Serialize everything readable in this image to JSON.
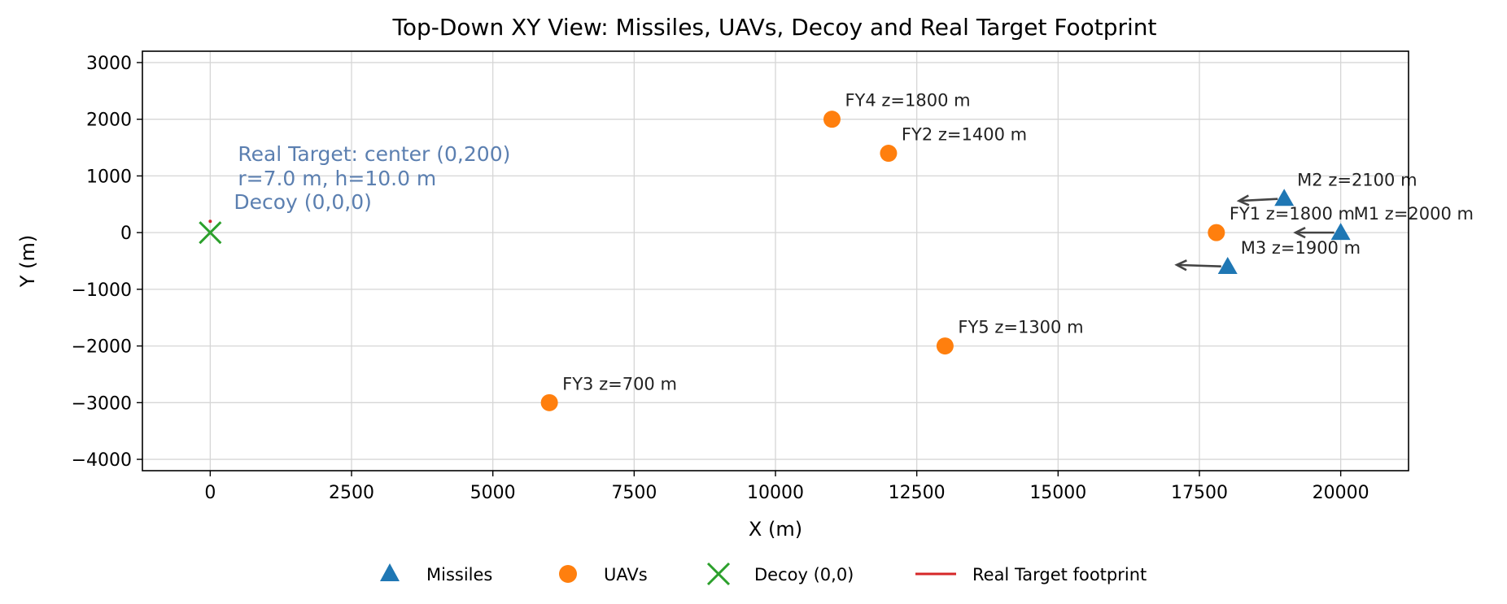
{
  "chart_data": {
    "type": "scatter",
    "title": "Top-Down XY View: Missiles, UAVs, Decoy and Real Target Footprint",
    "xlabel": "X (m)",
    "ylabel": "Y (m)",
    "xlim": [
      -1200,
      21200
    ],
    "ylim": [
      -4200,
      3200
    ],
    "xticks": [
      0,
      2500,
      5000,
      7500,
      10000,
      12500,
      15000,
      17500,
      20000
    ],
    "xtick_labels": [
      "0",
      "2500",
      "5000",
      "7500",
      "10000",
      "12500",
      "15000",
      "17500",
      "20000"
    ],
    "yticks": [
      3000,
      2000,
      1000,
      0,
      -1000,
      -2000,
      -3000,
      -4000
    ],
    "ytick_labels": [
      "3000",
      "2000",
      "1000",
      "0",
      "−1000",
      "−2000",
      "−3000",
      "−4000"
    ],
    "grid": true,
    "legend_position": "bottom-center",
    "missiles": [
      {
        "label": "M1 z=2000 m",
        "x": 20000,
        "y": 0,
        "dir_to": [
          19200,
          0
        ]
      },
      {
        "label": "M2 z=2100 m",
        "x": 19000,
        "y": 600,
        "dir_to": [
          18200,
          560
        ]
      },
      {
        "label": "M3 z=1900 m",
        "x": 18000,
        "y": -600,
        "dir_to": [
          17100,
          -570
        ]
      }
    ],
    "uavs": [
      {
        "label": "FY1 z=1800 m",
        "x": 17800,
        "y": 0
      },
      {
        "label": "FY2 z=1400 m",
        "x": 12000,
        "y": 1400
      },
      {
        "label": "FY3 z=700 m",
        "x": 6000,
        "y": -3000
      },
      {
        "label": "FY4 z=1800 m",
        "x": 11000,
        "y": 2000
      },
      {
        "label": "FY5 z=1300 m",
        "x": 13000,
        "y": -2000
      }
    ],
    "decoy": {
      "x": 0,
      "y": 0,
      "label": "Decoy (0,0,0)"
    },
    "real_target": {
      "center": [
        0,
        200
      ],
      "radius": 7.0,
      "label_line1": "Real Target: center (0,200)",
      "label_line2": "r=7.0 m, h=10.0 m"
    },
    "legend": [
      "Missiles",
      "UAVs",
      "Decoy (0,0)",
      "Real Target footprint"
    ],
    "colors": {
      "missile": "#1f77b4",
      "uav": "#ff7f0e",
      "decoy": "#2ca02c",
      "target": "#d62728",
      "arrow": "#444444",
      "note": "#5b7fb0"
    }
  }
}
